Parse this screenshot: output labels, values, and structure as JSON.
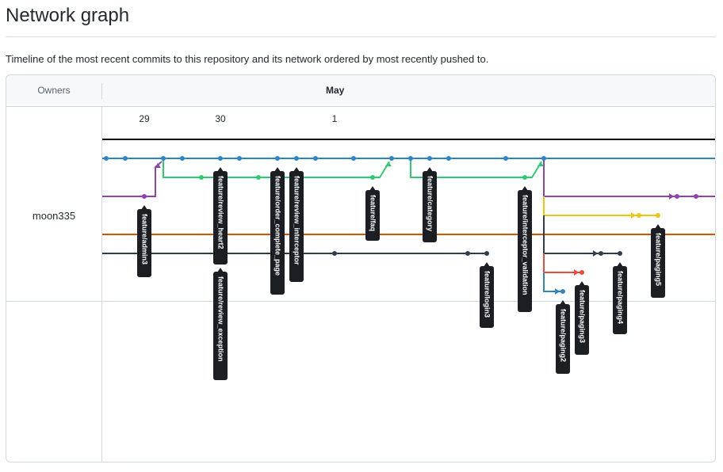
{
  "header": {
    "title": "Network graph",
    "subtitle": "Timeline of the most recent commits to this repository and its network ordered by most recently pushed to."
  },
  "graph": {
    "owners_label": "Owners",
    "month_label": "May",
    "days": [
      "29",
      "30",
      "1"
    ],
    "owner": "moon335",
    "colors": {
      "blue": "#2e86c1",
      "green": "#2ecc71",
      "purple": "#8e44ad",
      "orange": "#d35400",
      "dark": "#2c3e50",
      "yellow": "#f1c40f",
      "red": "#e74c3c",
      "label_bg": "#1b1f23"
    },
    "branches": [
      "feature/admin3",
      "feature/review_heart2",
      "feature/review_exception",
      "feature/order_complete_page",
      "feature/review_interceptor",
      "feature/faq",
      "feature/category",
      "feature/interceptor_validation",
      "feature/login3",
      "feature/paging2",
      "feature/paging3",
      "feature/paging4",
      "feature/paging5"
    ]
  }
}
